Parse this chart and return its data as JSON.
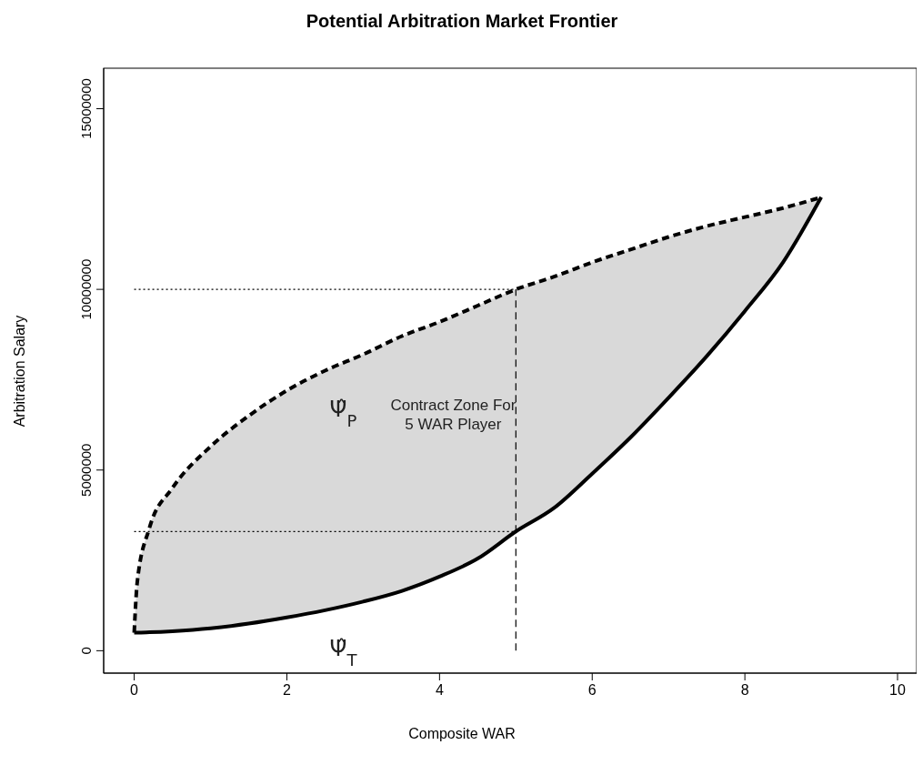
{
  "chart_data": {
    "type": "line",
    "title": "Potential Arbitration Market Frontier",
    "xlabel": "Composite WAR",
    "ylabel": "Arbitration Salary",
    "xlim": [
      -0.4,
      10.25
    ],
    "xticks": [
      0,
      2,
      4,
      6,
      8,
      10
    ],
    "ylim": [
      -620000,
      16120000
    ],
    "yticks": [
      0,
      5000000,
      10000000,
      15000000
    ],
    "marker": "none",
    "series": [
      {
        "name": "Ψ̂$_{P}$",
        "color": "#000000",
        "line_style": "dashed",
        "x": [
          0,
          0.04,
          0.2,
          0.5,
          1,
          1.5,
          2,
          2.5,
          3,
          3.5,
          4,
          4.5,
          5,
          5.5,
          6,
          6.5,
          7,
          7.5,
          8,
          8.5,
          9
        ],
        "values": [
          500000,
          1900000,
          3400000,
          4500000,
          5650000,
          6500000,
          7200000,
          7750000,
          8200000,
          8700000,
          9100000,
          9550000,
          10000000,
          10350000,
          10750000,
          11100000,
          11450000,
          11750000,
          12000000,
          12250000,
          12550000
        ]
      },
      {
        "name": "Ψ̂$_{T}$",
        "color": "#000000",
        "line_style": "solid",
        "x": [
          0,
          0.04,
          0.2,
          0.5,
          1,
          1.5,
          2,
          2.5,
          3,
          3.5,
          4,
          4.5,
          5,
          5.5,
          6,
          6.5,
          7,
          7.5,
          8,
          8.5,
          9
        ],
        "values": [
          500000,
          500000,
          510000,
          540000,
          620000,
          750000,
          920000,
          1120000,
          1360000,
          1650000,
          2050000,
          2550000,
          3300000,
          3950000,
          4900000,
          5900000,
          7000000,
          8150000,
          9400000,
          10750000,
          12550000
        ]
      },
      {
        "color": "#000000",
        "line_style": "dotted",
        "x": [
          0,
          5
        ],
        "values": [
          10000000,
          10000000
        ]
      },
      {
        "color": "#000000",
        "line_style": "dotted",
        "x": [
          0,
          5
        ],
        "values": [
          3300000,
          3300000
        ]
      },
      {
        "color": "#000000",
        "line_style": "dashed",
        "x": [
          5,
          5
        ],
        "values": [
          0,
          10000000
        ]
      }
    ],
    "annotations": [
      "Contract Zone For\n5 WAR Player"
    ]
  }
}
